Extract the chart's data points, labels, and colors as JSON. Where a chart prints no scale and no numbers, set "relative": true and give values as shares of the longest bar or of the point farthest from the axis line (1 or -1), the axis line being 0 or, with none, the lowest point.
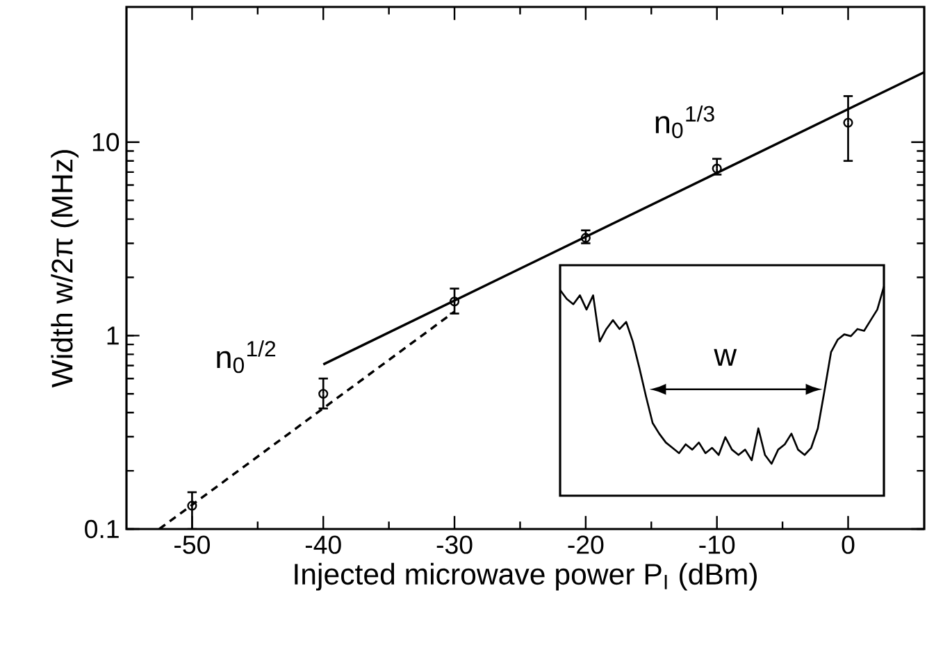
{
  "chart_data": [
    {
      "type": "scatter",
      "xlabel": "Injected microwave power P$_{I}$ (dBm)",
      "ylabel": "Width w/2π (MHz)",
      "log": "y",
      "xlim": [
        -55,
        5.8
      ],
      "xticks": [
        -50,
        -40,
        -30,
        -20,
        -10,
        0
      ],
      "ylim": [
        0.1,
        50
      ],
      "yticks": [
        0.1,
        1,
        10
      ],
      "marker": "circle",
      "grid": false,
      "annotations": [
        "n$_{0}$$^{1/2}$",
        "n$_{0}$$^{1/3}$"
      ],
      "series": [
        {
          "type": "scatter",
          "color": "#000000",
          "x": [
            -50,
            -40,
            -30,
            -20,
            -10,
            0
          ],
          "values": [
            0.132,
            0.5,
            1.5,
            3.2,
            7.3,
            12.6
          ],
          "errors": [
            [
              0.1,
              0.155
            ],
            [
              0.42,
              0.6
            ],
            [
              1.3,
              1.75
            ],
            [
              3.0,
              3.5
            ],
            [
              6.8,
              8.2
            ],
            [
              8.0,
              17.3
            ]
          ]
        },
        {
          "type": "line",
          "color": "#000000",
          "line_style": "solid",
          "marker": "none",
          "x": [
            -40,
            5.8
          ],
          "values": [
            0.71,
            23
          ]
        },
        {
          "type": "line",
          "color": "#000000",
          "line_style": "dashed",
          "marker": "none",
          "x": [
            -52.5,
            -30
          ],
          "values": [
            0.1,
            1.33
          ]
        }
      ]
    },
    {
      "type": "line",
      "relative": true,
      "color": "#000000",
      "categories": [
        null,
        null,
        null,
        null,
        null,
        null,
        null,
        null,
        null,
        null,
        null,
        null,
        null,
        null,
        null,
        null,
        null,
        null,
        null,
        null,
        null,
        null,
        null,
        null,
        null,
        null,
        null,
        null,
        null,
        null,
        null,
        null,
        null,
        null,
        null,
        null,
        null,
        null,
        null,
        null,
        null,
        null,
        null,
        null,
        null,
        null,
        null,
        null,
        null,
        null
      ],
      "values": [
        0.98,
        0.93,
        0.9,
        0.95,
        0.87,
        0.95,
        0.69,
        0.76,
        0.81,
        0.76,
        0.8,
        0.69,
        0.54,
        0.38,
        0.23,
        0.17,
        0.12,
        0.09,
        0.06,
        0.11,
        0.08,
        0.12,
        0.06,
        0.09,
        0.05,
        0.15,
        0.08,
        0.05,
        0.08,
        0.02,
        0.2,
        0.05,
        0,
        0.08,
        0.11,
        0.17,
        0.08,
        0.05,
        0.09,
        0.2,
        0.41,
        0.63,
        0.7,
        0.73,
        0.72,
        0.76,
        0.75,
        0.81,
        0.87,
        1
      ],
      "annotations": [
        "w"
      ]
    }
  ]
}
